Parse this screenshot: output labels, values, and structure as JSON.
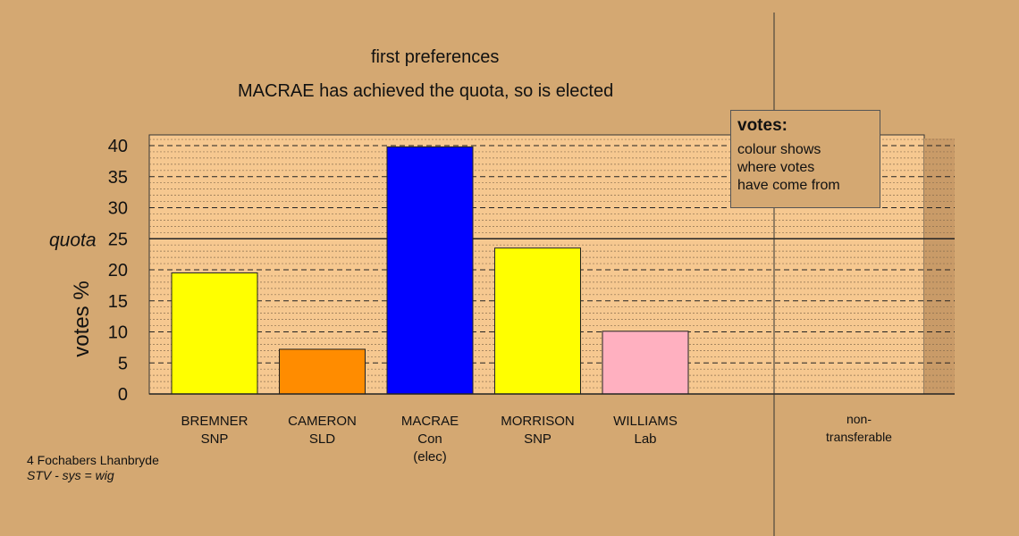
{
  "heading": {
    "line1": "first preferences",
    "line2": "MACRAE has achieved the quota, so is elected"
  },
  "legend": {
    "title": "votes:",
    "lines": [
      "colour shows",
      "where votes",
      "have come from"
    ]
  },
  "footer": {
    "ward": "4 Fochabers Lhanbryde",
    "system": "STV - sys = wig"
  },
  "chart_data": {
    "type": "bar",
    "title": "first preferences",
    "subtitle": "MACRAE has achieved the quota, so is elected",
    "ylabel": "votes %",
    "ylim": [
      0,
      40
    ],
    "yticks": [
      0,
      5,
      10,
      15,
      20,
      25,
      30,
      35,
      40
    ],
    "quota": 25,
    "quota_label": "quota",
    "grid": true,
    "categories": [
      [
        "BREMNER",
        "SNP"
      ],
      [
        "CAMERON",
        "SLD"
      ],
      [
        "MACRAE",
        "Con",
        "(elec)"
      ],
      [
        "MORRISON",
        "SNP"
      ],
      [
        "WILLIAMS",
        "Lab"
      ]
    ],
    "values": [
      19.5,
      7.2,
      39.8,
      23.5,
      10.1
    ],
    "colors": [
      "#ffff00",
      "#ff8c00",
      "#0000ff",
      "#ffff00",
      "#ffb0c0"
    ],
    "non_transferable_label": [
      "non-",
      "transferable"
    ],
    "non_transferable_value": 0
  }
}
